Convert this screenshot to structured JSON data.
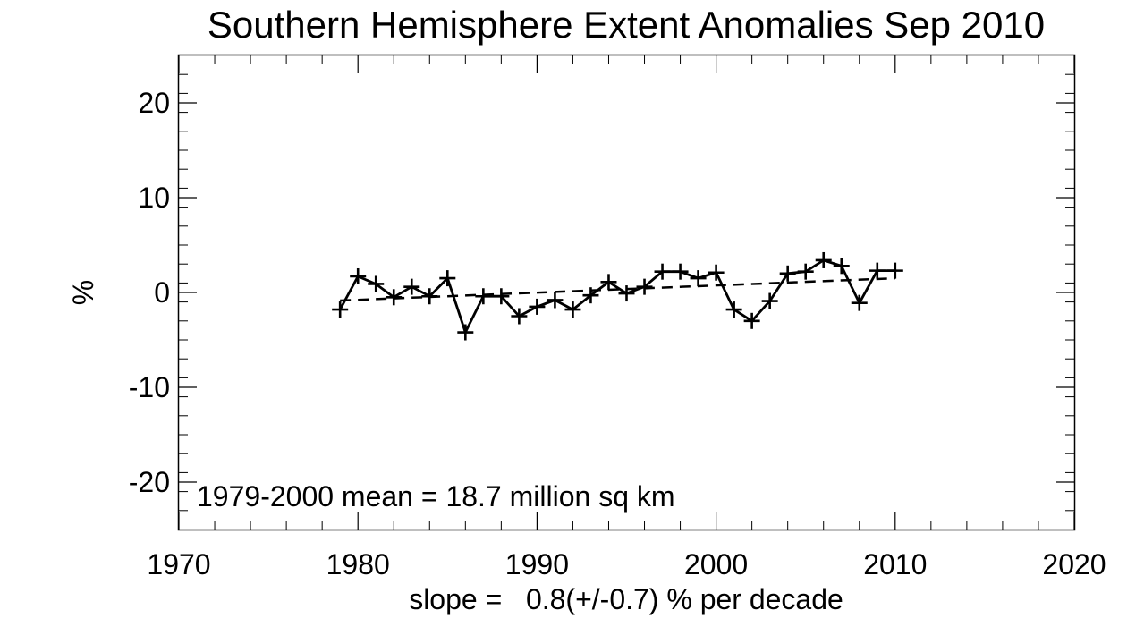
{
  "chart_data": {
    "type": "line",
    "title": "Southern Hemisphere Extent Anomalies Sep 2010",
    "xlabel": "slope =   0.8(+/-0.7) % per decade",
    "ylabel": "%",
    "xlim": [
      1970,
      2020
    ],
    "ylim": [
      -25,
      25
    ],
    "x_ticks": [
      1970,
      1980,
      1990,
      2000,
      2010,
      2020
    ],
    "x_tick_labels": [
      "1970",
      "1980",
      "1990",
      "2000",
      "2010",
      "2020"
    ],
    "y_ticks": [
      -20,
      -10,
      0,
      10,
      20
    ],
    "y_tick_labels": [
      "-20",
      "-10",
      "0",
      "10",
      "20"
    ],
    "annotation": "1979-2000 mean =  18.7 million sq km",
    "grid": false,
    "series": [
      {
        "name": "anomaly",
        "style": "solid",
        "marker": "plus",
        "color": "#000000",
        "x": [
          1979,
          1980,
          1981,
          1982,
          1983,
          1984,
          1985,
          1986,
          1987,
          1988,
          1989,
          1990,
          1991,
          1992,
          1993,
          1994,
          1995,
          1996,
          1997,
          1998,
          1999,
          2000,
          2001,
          2002,
          2003,
          2004,
          2005,
          2006,
          2007,
          2008,
          2009,
          2010
        ],
        "values": [
          -1.8,
          1.7,
          0.9,
          -0.5,
          0.6,
          -0.4,
          1.5,
          -4.2,
          -0.4,
          -0.4,
          -2.5,
          -1.5,
          -0.8,
          -1.8,
          -0.3,
          1.1,
          -0.1,
          0.6,
          2.2,
          2.2,
          1.5,
          2.1,
          -1.8,
          -3.0,
          -0.9,
          2.0,
          2.2,
          3.4,
          2.8,
          -1.1,
          2.3,
          2.3
        ]
      },
      {
        "name": "trend",
        "style": "dashed",
        "color": "#000000",
        "x": [
          1979,
          2010
        ],
        "values": [
          -0.85,
          1.5
        ]
      }
    ]
  }
}
